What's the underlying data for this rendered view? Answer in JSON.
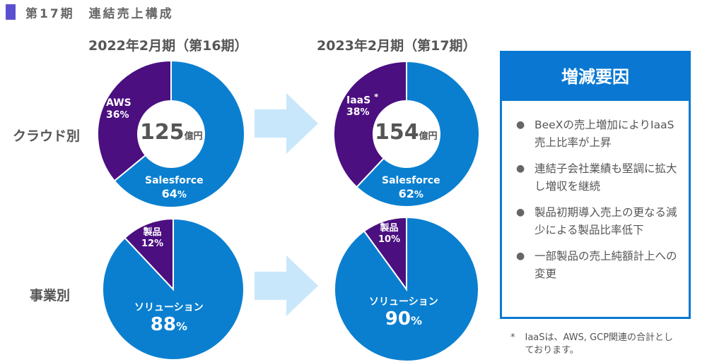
{
  "header": {
    "title": "第17期　連結売上構成"
  },
  "periods": [
    "2022年2月期（第16期）",
    "2023年2月期（第17期）"
  ],
  "row_labels": [
    "クラウド別",
    "事業別"
  ],
  "colors": {
    "blue": "#0a7fd0",
    "purple": "#4b0f80",
    "arrow": "#c9e7fb",
    "box": "#0a78d2"
  },
  "chart_data": [
    {
      "type": "pie",
      "donut": true,
      "title": "クラウド別 2022年2月期",
      "center_value": "125",
      "center_unit": "億円",
      "slices": [
        {
          "label": "Salesforce",
          "value": 64,
          "pct": "64",
          "color": "#0a7fd0"
        },
        {
          "label": "AWS",
          "value": 36,
          "pct": "36",
          "color": "#4b0f80"
        }
      ]
    },
    {
      "type": "pie",
      "donut": true,
      "title": "クラウド別 2023年2月期",
      "center_value": "154",
      "center_unit": "億円",
      "slices": [
        {
          "label": "Salesforce",
          "value": 62,
          "pct": "62",
          "color": "#0a7fd0"
        },
        {
          "label": "IaaS",
          "value": 38,
          "pct": "38",
          "color": "#4b0f80",
          "mark": "*"
        }
      ]
    },
    {
      "type": "pie",
      "donut": false,
      "title": "事業別 2022年2月期",
      "slices": [
        {
          "label": "ソリューション",
          "value": 88,
          "pct": "88",
          "color": "#0a7fd0"
        },
        {
          "label": "製品",
          "value": 12,
          "pct": "12",
          "color": "#4b0f80"
        }
      ]
    },
    {
      "type": "pie",
      "donut": false,
      "title": "事業別 2023年2月期",
      "slices": [
        {
          "label": "ソリューション",
          "value": 90,
          "pct": "90",
          "color": "#0a7fd0"
        },
        {
          "label": "製品",
          "value": 10,
          "pct": "10",
          "color": "#4b0f80"
        }
      ]
    }
  ],
  "pct_unit": "%",
  "factors": {
    "title": "増減要因",
    "items": [
      "BeeXの売上増加によりIaaS売上比率が上昇",
      "連結子会社業績も堅調に拡大し増収を継続",
      "製品初期導入売上の更なる減少による製品比率低下",
      "一部製品の売上純額計上への変更"
    ]
  },
  "footnote": {
    "mark": "*",
    "text": "IaaSは、AWS, GCP関連の合計としております。"
  }
}
